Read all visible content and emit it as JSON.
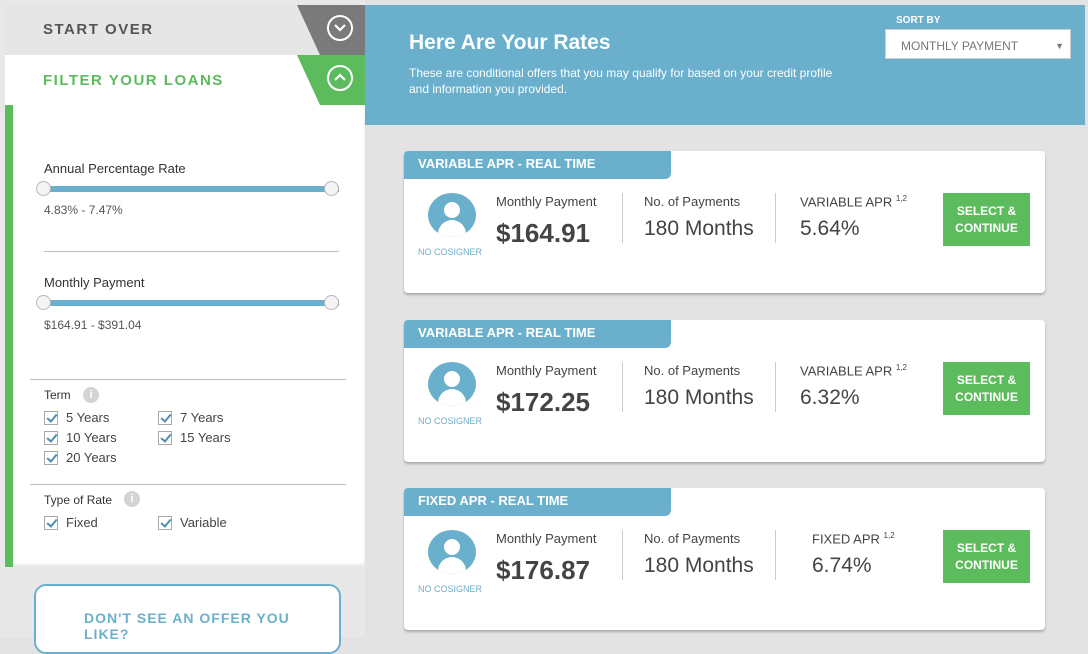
{
  "sidebar": {
    "start_over": "START OVER",
    "filter_title": "FILTER YOUR LOANS",
    "apr": {
      "title": "Annual Percentage Rate",
      "range": "4.83% - 7.47%"
    },
    "payment": {
      "title": "Monthly Payment",
      "range": "$164.91 - $391.04"
    },
    "term": {
      "title": "Term",
      "options": [
        "5 Years",
        "7 Years",
        "10 Years",
        "15 Years",
        "20 Years"
      ]
    },
    "rate_type": {
      "title": "Type of Rate",
      "options": [
        "Fixed",
        "Variable"
      ]
    },
    "offer_prompt": "DON'T SEE AN OFFER YOU LIKE?"
  },
  "banner": {
    "title": "Here Are Your Rates",
    "subtitle": "These are conditional offers that you may qualify for based on your credit profile and information you provided.",
    "sort_label": "SORT BY",
    "sort_value": "MONTHLY PAYMENT"
  },
  "cards": [
    {
      "ribbon": "VARIABLE APR - REAL TIME",
      "cosigner": "NO COSIGNER",
      "mp_label": "Monthly Payment",
      "mp_value": "$164.91",
      "np_label": "No. of Payments",
      "np_value": "180 Months",
      "apr_label": "VARIABLE APR",
      "apr_note": "1,2",
      "apr_value": "5.64%",
      "button": "SELECT & CONTINUE"
    },
    {
      "ribbon": "VARIABLE APR - REAL TIME",
      "cosigner": "NO COSIGNER",
      "mp_label": "Monthly Payment",
      "mp_value": "$172.25",
      "np_label": "No. of Payments",
      "np_value": "180 Months",
      "apr_label": "VARIABLE APR",
      "apr_note": "1,2",
      "apr_value": "6.32%",
      "button": "SELECT & CONTINUE"
    },
    {
      "ribbon": "FIXED APR - REAL TIME",
      "cosigner": "NO COSIGNER",
      "mp_label": "Monthly Payment",
      "mp_value": "$176.87",
      "np_label": "No. of Payments",
      "np_value": "180 Months",
      "apr_label": "FIXED APR",
      "apr_note": "1,2",
      "apr_value": "6.74%",
      "button": "SELECT & CONTINUE"
    }
  ]
}
